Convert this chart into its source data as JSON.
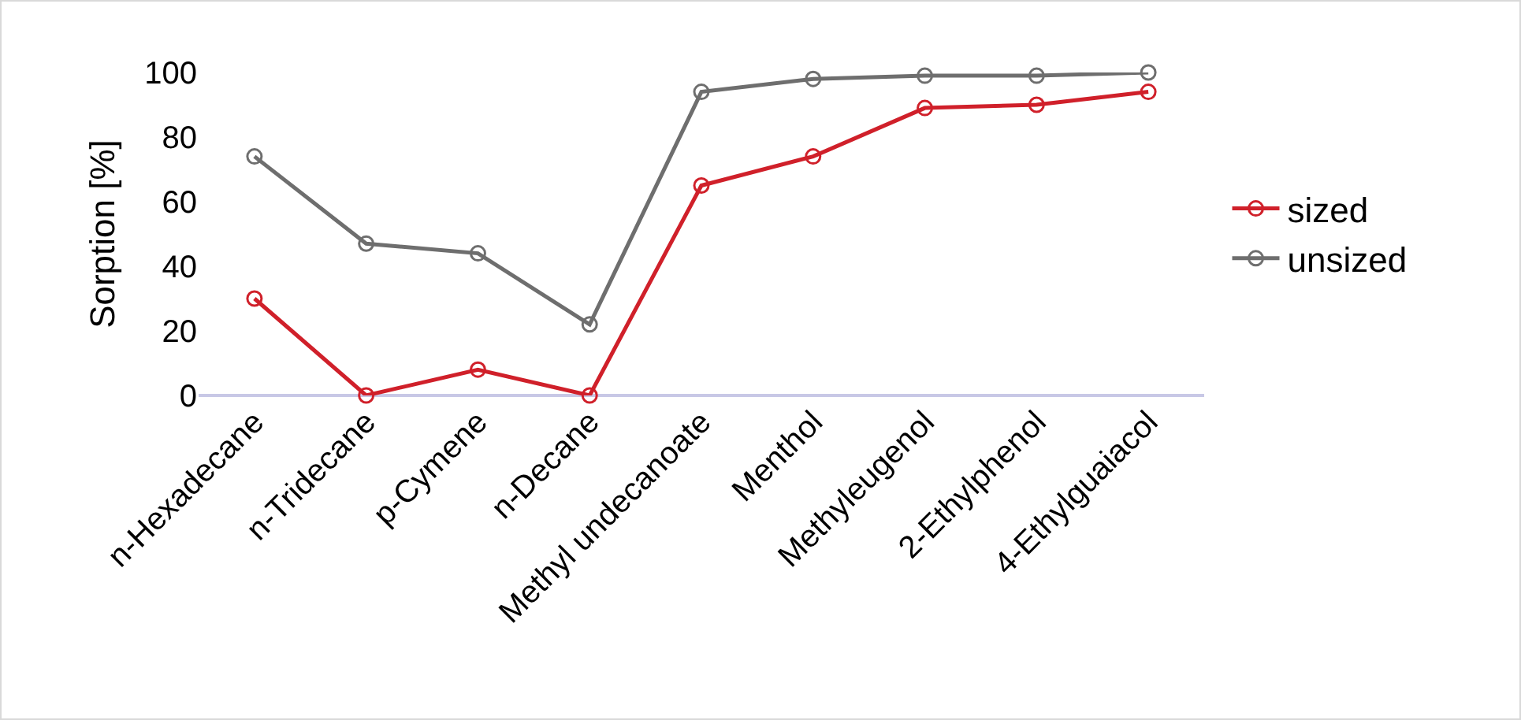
{
  "chart_data": {
    "type": "line",
    "ylabel": "Sorption [%]",
    "categories": [
      "n-Hexadecane",
      "n-Tridecane",
      "p-Cymene",
      "n-Decane",
      "Methyl undecanoate",
      "Menthol",
      "Methyleugenol",
      "2-Ethylphenol",
      "4-Ethylguaiacol"
    ],
    "series": [
      {
        "name": "sized",
        "color": "#d0202a",
        "values": [
          30,
          0,
          8,
          0,
          65,
          74,
          89,
          90,
          94
        ]
      },
      {
        "name": "unsized",
        "color": "#6e6e6e",
        "values": [
          74,
          47,
          44,
          22,
          94,
          98,
          99,
          99,
          100
        ]
      }
    ],
    "ylim": [
      0,
      100
    ],
    "yticks": [
      0,
      20,
      40,
      60,
      80,
      100
    ],
    "grid": false,
    "legend": "right",
    "marker": "circle",
    "line_style": "solid"
  }
}
